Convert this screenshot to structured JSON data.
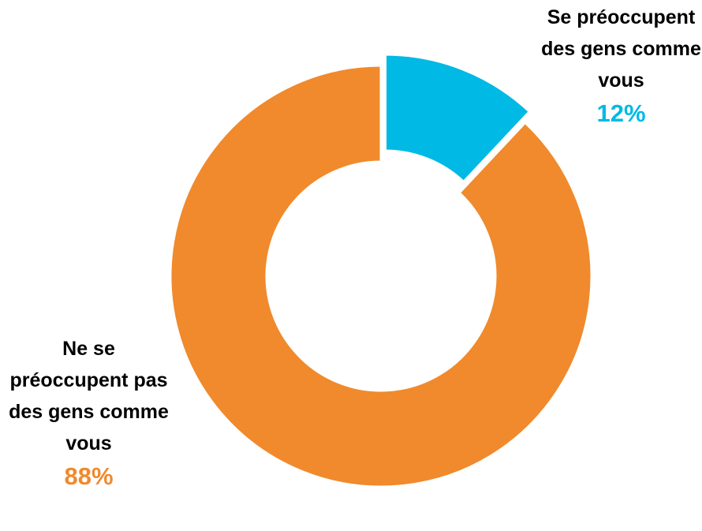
{
  "chart_data": {
    "type": "donut",
    "categories": [
      "Se préoccupent des gens comme vous",
      "Ne se préoccupent pas des gens comme vous"
    ],
    "values": [
      12,
      88
    ],
    "value_labels": [
      "12%",
      "88%"
    ],
    "colors": [
      "#00b9e4",
      "#f08a2c"
    ]
  }
}
